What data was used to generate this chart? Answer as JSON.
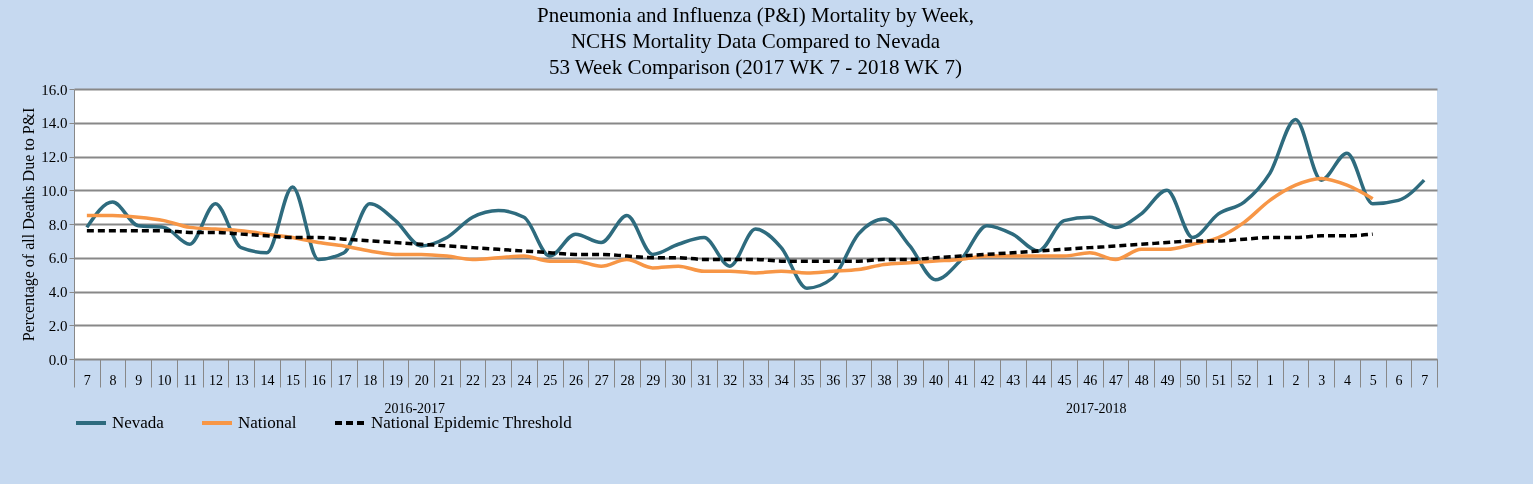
{
  "chart_data": {
    "type": "line",
    "title": "Pneumonia and Influenza (P&I) Mortality by Week,\nNCHS Mortality  Data Compared to Nevada\n53 Week Comparison (2017 WK 7 - 2018 WK 7)",
    "ylabel": "Percentage of all Deaths Due to P&I",
    "categories": [
      "7",
      "8",
      "9",
      "10",
      "11",
      "12",
      "13",
      "14",
      "15",
      "16",
      "17",
      "18",
      "19",
      "20",
      "21",
      "22",
      "23",
      "24",
      "25",
      "26",
      "27",
      "28",
      "29",
      "30",
      "31",
      "32",
      "33",
      "34",
      "35",
      "36",
      "37",
      "38",
      "39",
      "40",
      "41",
      "42",
      "43",
      "44",
      "45",
      "46",
      "47",
      "48",
      "49",
      "50",
      "51",
      "52",
      "1",
      "2",
      "3",
      "4",
      "5",
      "6",
      "7"
    ],
    "series": [
      {
        "name": "Nevada",
        "color": "#2e6b7e",
        "line_style": "solid",
        "values": [
          7.8,
          9.3,
          7.9,
          7.8,
          6.8,
          9.2,
          6.6,
          6.3,
          10.2,
          5.9,
          6.3,
          9.2,
          8.2,
          6.7,
          7.2,
          8.4,
          8.8,
          8.4,
          6.1,
          7.4,
          6.9,
          8.5,
          6.2,
          6.8,
          7.2,
          5.5,
          7.7,
          6.6,
          4.2,
          4.8,
          7.4,
          8.3,
          6.7,
          4.7,
          5.9,
          7.9,
          7.4,
          6.4,
          8.2,
          8.4,
          7.8,
          8.6,
          10.0,
          7.2,
          8.6,
          9.3,
          11.0,
          14.2,
          10.6,
          12.2,
          9.2,
          9.4,
          10.6
        ]
      },
      {
        "name": "National",
        "color": "#f79646",
        "line_style": "solid",
        "values": [
          8.5,
          8.5,
          8.4,
          8.2,
          7.8,
          7.7,
          7.6,
          7.4,
          7.2,
          6.9,
          6.7,
          6.4,
          6.2,
          6.2,
          6.1,
          5.9,
          6.0,
          6.1,
          5.8,
          5.8,
          5.5,
          5.9,
          5.4,
          5.5,
          5.2,
          5.2,
          5.1,
          5.2,
          5.1,
          5.2,
          5.3,
          5.6,
          5.7,
          5.8,
          5.9,
          6.1,
          6.1,
          6.1,
          6.1,
          6.3,
          5.9,
          6.5,
          6.5,
          6.8,
          7.2,
          8.1,
          9.4,
          10.3,
          10.7,
          10.3,
          9.5,
          null,
          null
        ]
      },
      {
        "name": "National Epidemic Threshold",
        "color": "#000000",
        "line_style": "dashed",
        "values": [
          7.6,
          7.6,
          7.6,
          7.6,
          7.5,
          7.5,
          7.4,
          7.3,
          7.2,
          7.2,
          7.1,
          7.0,
          6.9,
          6.8,
          6.7,
          6.6,
          6.5,
          6.4,
          6.3,
          6.2,
          6.2,
          6.1,
          6.0,
          6.0,
          5.9,
          5.9,
          5.9,
          5.8,
          5.8,
          5.8,
          5.8,
          5.9,
          5.9,
          6.0,
          6.1,
          6.2,
          6.3,
          6.4,
          6.5,
          6.6,
          6.7,
          6.8,
          6.9,
          7.0,
          7.0,
          7.1,
          7.2,
          7.2,
          7.3,
          7.3,
          7.4,
          null,
          null
        ]
      }
    ],
    "ylim": [
      0,
      16
    ],
    "yticks": [
      {
        "value": 0,
        "label": "0.0"
      },
      {
        "value": 2,
        "label": "2.0"
      },
      {
        "value": 4,
        "label": "4.0"
      },
      {
        "value": 6,
        "label": "6.0"
      },
      {
        "value": 8,
        "label": "8.0"
      },
      {
        "value": 10,
        "label": "10.0"
      },
      {
        "value": 12,
        "label": "12.0"
      },
      {
        "value": 14,
        "label": "14.0"
      },
      {
        "value": 16,
        "label": "16.0"
      }
    ],
    "grid": "y",
    "legend": "bottom",
    "marker": "none",
    "annotations": [
      "2016-2017",
      "2017-2018"
    ]
  }
}
